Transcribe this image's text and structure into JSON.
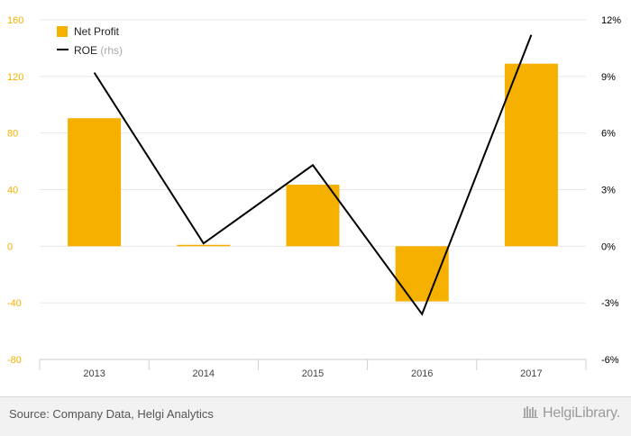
{
  "colors": {
    "bar": "#f6b000",
    "line": "#000000",
    "left_axis_text": "#f6b000",
    "right_axis_text": "#000000",
    "grid": "#e8e8e8",
    "footer_bg": "#f2f2f2"
  },
  "chart_data": {
    "type": "bar",
    "categories": [
      "2013",
      "2014",
      "2015",
      "2016",
      "2017"
    ],
    "series": [
      {
        "name": "Net Profit",
        "kind": "bar",
        "axis": "left",
        "values": [
          90.5,
          1.0,
          43.5,
          -39.0,
          129.0
        ]
      },
      {
        "name": "ROE",
        "name_suffix": "(rhs)",
        "kind": "line",
        "axis": "right",
        "values": [
          9.2,
          0.15,
          4.3,
          -3.6,
          11.2
        ]
      }
    ],
    "left_axis": {
      "ticks": [
        "160",
        "120",
        "80",
        "40",
        "0",
        "-40",
        "-80"
      ],
      "ylim": [
        -80,
        160
      ]
    },
    "right_axis": {
      "ticks": [
        "12%",
        "9%",
        "6%",
        "3%",
        "0%",
        "-3%",
        "-6%"
      ],
      "ylim": [
        -6,
        12
      ]
    },
    "legend_position": "top-left",
    "grid": true
  },
  "footer": {
    "source": "Source: Company Data, Helgi Analytics",
    "brand": "HelgiLibrary."
  }
}
